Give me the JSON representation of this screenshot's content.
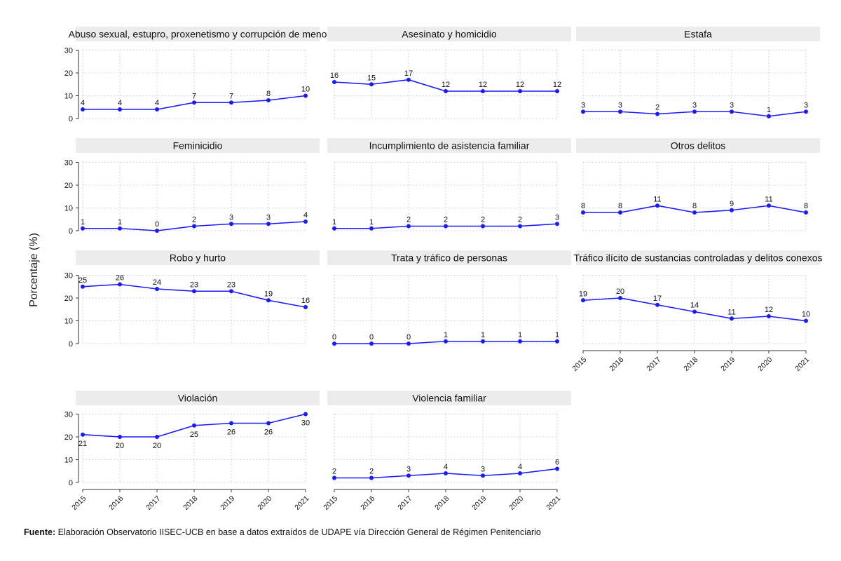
{
  "source": {
    "label": "Fuente:",
    "text": "Elaboración Observatorio IISEC-UCB en base a datos  extraídos de UDAPE vía Dirección General de Régimen Penitenciario"
  },
  "colors": {
    "line": "#1a1aff",
    "header_bg": "#ececec",
    "grid": "#c8c8c8"
  },
  "chart_data": {
    "type": "line",
    "ylabel": "Porcentaje (%)",
    "xlabel": "",
    "x": [
      "2015",
      "2016",
      "2017",
      "2018",
      "2019",
      "2020",
      "2021"
    ],
    "ylim": [
      0,
      30
    ],
    "yticks": [
      0,
      10,
      20,
      30
    ],
    "grid": true,
    "panels": [
      {
        "title": "Abuso sexual, estupro, proxenetismo y corrupción de meno",
        "values": [
          4,
          4,
          4,
          7,
          7,
          8,
          10
        ],
        "label_pos": "above"
      },
      {
        "title": "Asesinato y homicidio",
        "values": [
          16,
          15,
          17,
          12,
          12,
          12,
          12
        ],
        "label_pos": "above"
      },
      {
        "title": "Estafa",
        "values": [
          3,
          3,
          2,
          3,
          3,
          1,
          3
        ],
        "label_pos": "above"
      },
      {
        "title": "Feminicidio",
        "values": [
          1,
          1,
          0,
          2,
          3,
          3,
          4
        ],
        "label_pos": "above"
      },
      {
        "title": "Incumplimiento de asistencia familiar",
        "values": [
          1,
          1,
          2,
          2,
          2,
          2,
          3
        ],
        "label_pos": "above"
      },
      {
        "title": "Otros delitos",
        "values": [
          8,
          8,
          11,
          8,
          9,
          11,
          8
        ],
        "label_pos": "above"
      },
      {
        "title": "Robo y hurto",
        "values": [
          25,
          26,
          24,
          23,
          23,
          19,
          16
        ],
        "label_pos": "above"
      },
      {
        "title": "Trata y tráfico de personas",
        "values": [
          0,
          0,
          0,
          1,
          1,
          1,
          1
        ],
        "label_pos": "above"
      },
      {
        "title": "Tráfico ilícito de sustancias controladas y delitos conexos",
        "values": [
          19,
          20,
          17,
          14,
          11,
          12,
          10
        ],
        "label_pos": "above"
      },
      {
        "title": "Violación",
        "values": [
          21,
          20,
          20,
          25,
          26,
          26,
          30
        ],
        "label_pos": "below"
      },
      {
        "title": "Violencia familiar",
        "values": [
          2,
          2,
          3,
          4,
          3,
          4,
          6
        ],
        "label_pos": "above"
      }
    ]
  }
}
